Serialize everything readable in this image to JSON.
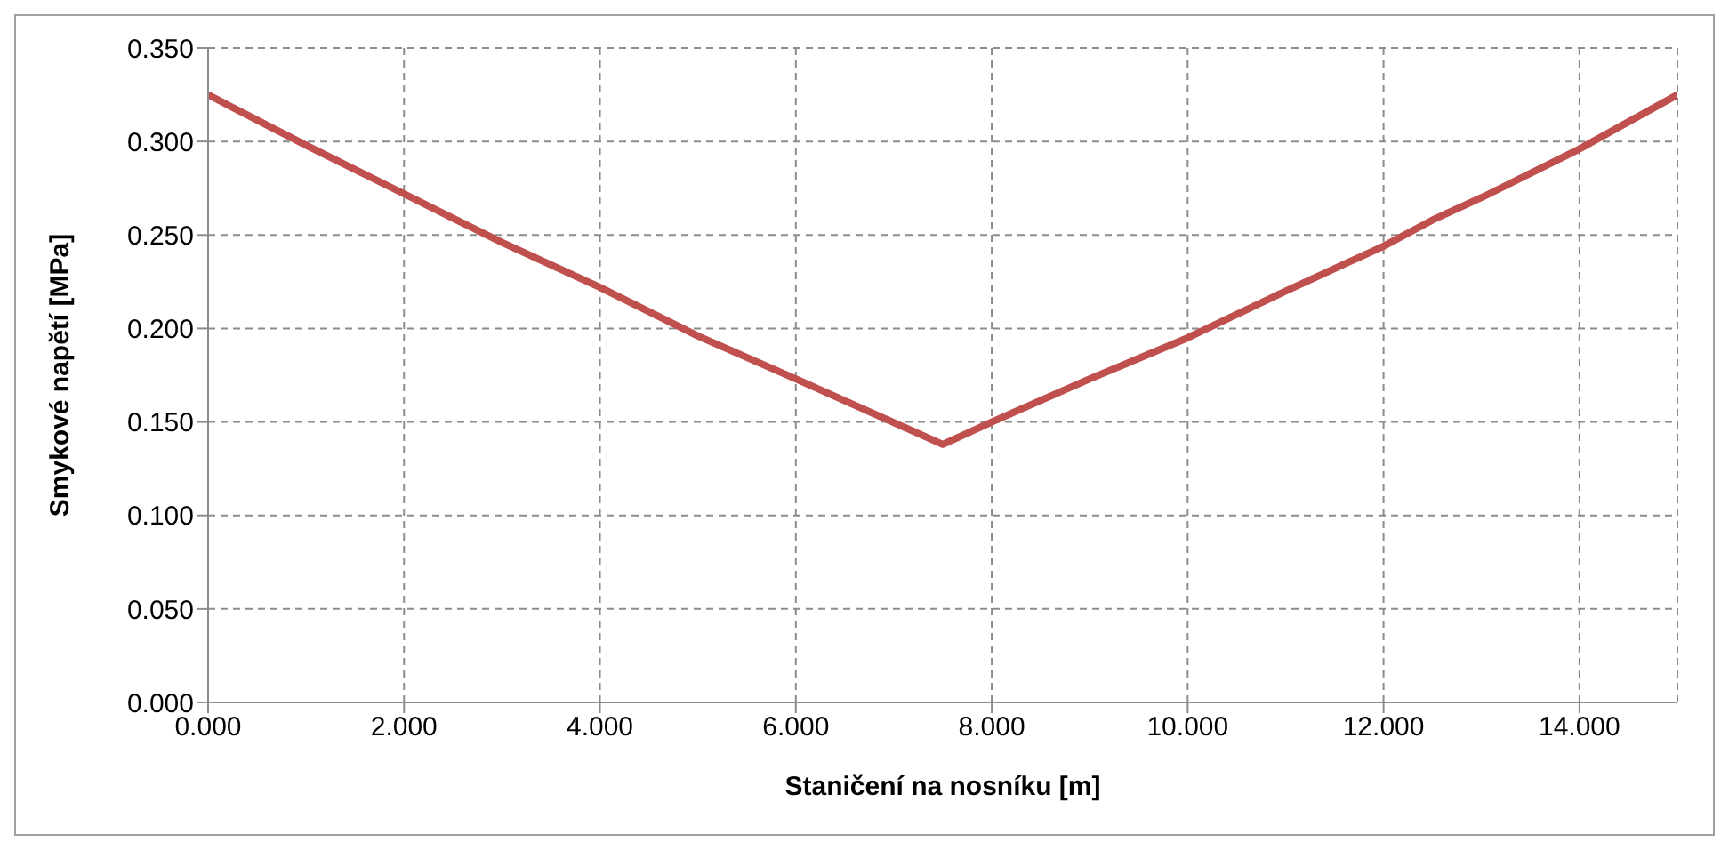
{
  "chart_data": {
    "type": "line",
    "xlabel": "Staničení na nosníku [m]",
    "ylabel": "Smykové napětí [MPa]",
    "x": [
      0,
      1,
      2,
      3,
      4,
      5,
      6,
      7.5,
      8,
      9,
      10,
      11,
      12,
      12.5,
      13,
      14,
      15
    ],
    "series": [
      {
        "color": "#c0504d",
        "values": [
          0.325,
          0.298,
          0.272,
          0.246,
          0.222,
          0.196,
          0.173,
          0.138,
          0.15,
          0.173,
          0.195,
          0.22,
          0.244,
          0.258,
          0.27,
          0.296,
          0.325
        ]
      }
    ],
    "xlim": [
      0,
      15
    ],
    "ylim": [
      0,
      0.35
    ],
    "xticks": [
      {
        "value": 0,
        "label": "0.000"
      },
      {
        "value": 2,
        "label": "2.000"
      },
      {
        "value": 4,
        "label": "4.000"
      },
      {
        "value": 6,
        "label": "6.000"
      },
      {
        "value": 8,
        "label": "8.000"
      },
      {
        "value": 10,
        "label": "10.000"
      },
      {
        "value": 12,
        "label": "12.000"
      },
      {
        "value": 14,
        "label": "14.000"
      }
    ],
    "yticks": [
      {
        "value": 0,
        "label": "0.000"
      },
      {
        "value": 0.05,
        "label": "0.050"
      },
      {
        "value": 0.1,
        "label": "0.100"
      },
      {
        "value": 0.15,
        "label": "0.150"
      },
      {
        "value": 0.2,
        "label": "0.200"
      },
      {
        "value": 0.25,
        "label": "0.250"
      },
      {
        "value": 0.3,
        "label": "0.300"
      },
      {
        "value": 0.35,
        "label": "0.350"
      }
    ],
    "grid": true,
    "marker": "none",
    "line_style": "solid",
    "legend": false
  }
}
